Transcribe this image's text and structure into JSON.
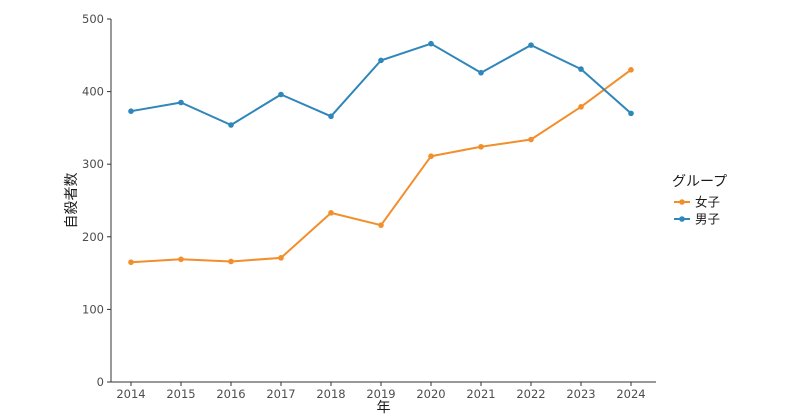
{
  "chart_data": {
    "type": "line",
    "xlabel": "年",
    "ylabel": "自殺者数",
    "x": [
      2014,
      2015,
      2016,
      2017,
      2018,
      2019,
      2020,
      2021,
      2022,
      2023,
      2024
    ],
    "xlim": [
      2013.6,
      2024.5
    ],
    "ylim": [
      0,
      500
    ],
    "yticks": [
      0,
      100,
      200,
      300,
      400,
      500
    ],
    "grid": false,
    "legend": {
      "title": "グループ",
      "position": "right"
    },
    "series": [
      {
        "name": "女子",
        "color": "#f28e2b",
        "values": [
          165,
          169,
          166,
          171,
          233,
          216,
          311,
          324,
          334,
          379,
          430
        ]
      },
      {
        "name": "男子",
        "color": "#2e86b9",
        "values": [
          373,
          385,
          354,
          396,
          366,
          443,
          466,
          426,
          464,
          431,
          370
        ]
      }
    ]
  }
}
